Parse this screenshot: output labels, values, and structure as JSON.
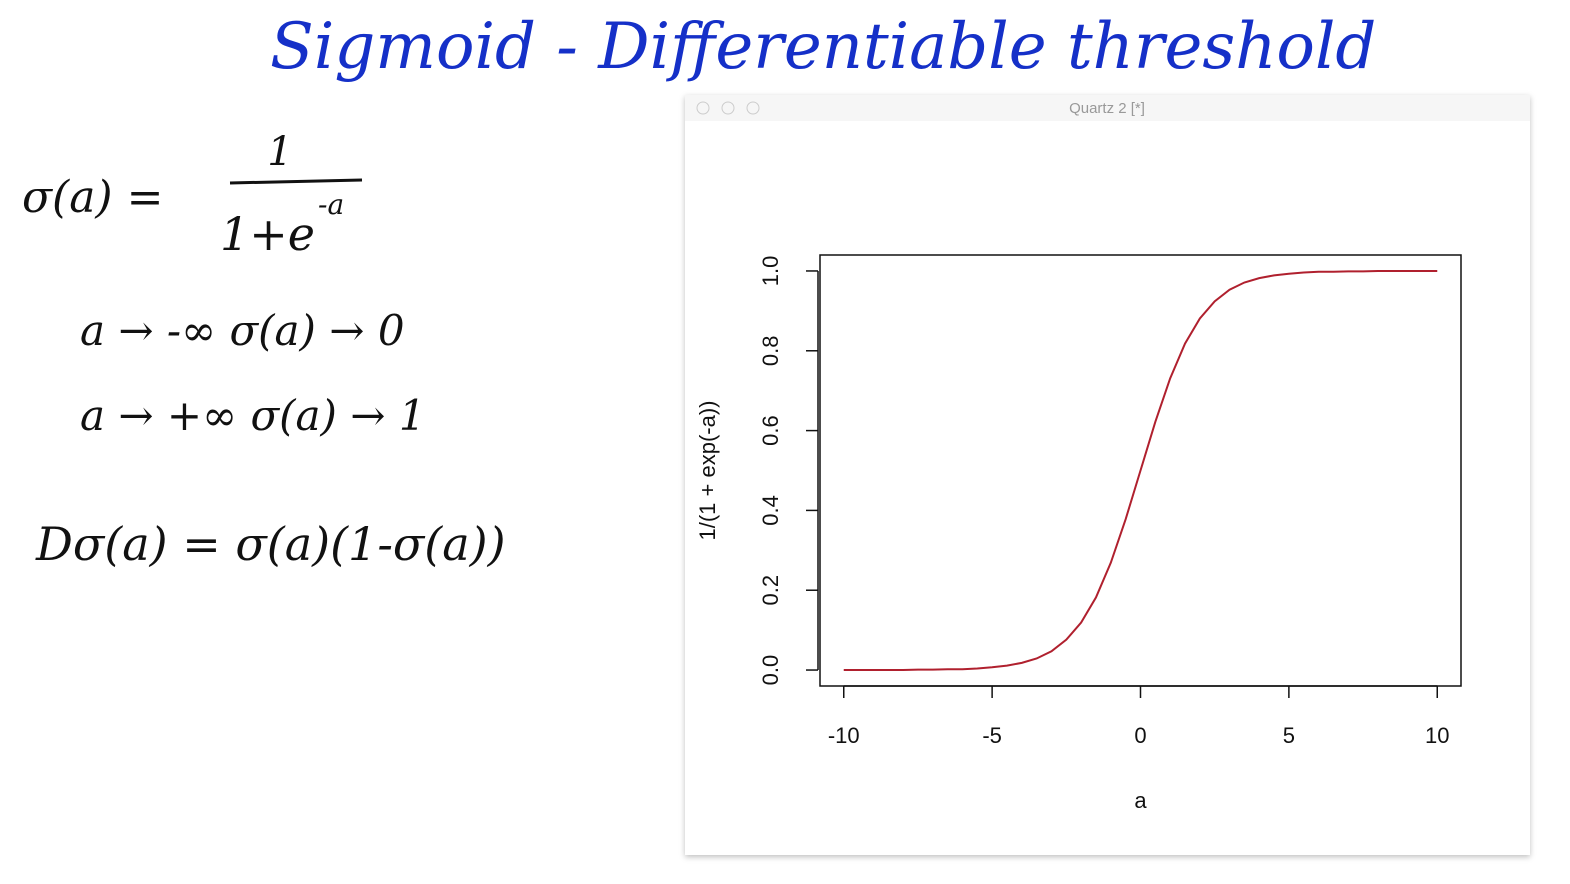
{
  "notes": {
    "title": "Sigmoid - Differentiable threshold",
    "formula": {
      "lhs": "σ(a) =",
      "numerator": "1",
      "denominator": "1+e",
      "exponent": "-a"
    },
    "limits": [
      "a → -∞   σ(a) → 0",
      "a → +∞   σ(a) → 1"
    ],
    "derivative": "Dσ(a) = σ(a)(1-σ(a))"
  },
  "window_title": "Quartz 2 [*]",
  "chart_data": {
    "type": "line",
    "x": [
      -10,
      -9.5,
      -9,
      -8.5,
      -8,
      -7.5,
      -7,
      -6.5,
      -6,
      -5.5,
      -5,
      -4.5,
      -4,
      -3.5,
      -3,
      -2.5,
      -2,
      -1.5,
      -1,
      -0.5,
      0,
      0.5,
      1,
      1.5,
      2,
      2.5,
      3,
      3.5,
      4,
      4.5,
      5,
      5.5,
      6,
      6.5,
      7,
      7.5,
      8,
      8.5,
      9,
      9.5,
      10
    ],
    "values": [
      0,
      0,
      0,
      0,
      0,
      0.001,
      0.001,
      0.002,
      0.002,
      0.004,
      0.007,
      0.011,
      0.018,
      0.029,
      0.047,
      0.076,
      0.119,
      0.182,
      0.269,
      0.378,
      0.5,
      0.622,
      0.731,
      0.818,
      0.881,
      0.924,
      0.953,
      0.971,
      0.982,
      0.989,
      0.993,
      0.996,
      0.998,
      0.998,
      0.999,
      0.999,
      1,
      1,
      1,
      1,
      1
    ],
    "color": "#b0202e",
    "xlabel": "a",
    "ylabel": "1/(1 + exp(-a))",
    "xlim": [
      -10.8,
      10.8
    ],
    "ylim": [
      -0.04,
      1.04
    ],
    "xticks": [
      -10,
      -5,
      0,
      5,
      10
    ],
    "yticks": [
      {
        "value": 0,
        "label": "0.0"
      },
      0.2,
      0.4,
      0.6,
      0.8,
      {
        "value": 1,
        "label": "1.0"
      }
    ]
  }
}
